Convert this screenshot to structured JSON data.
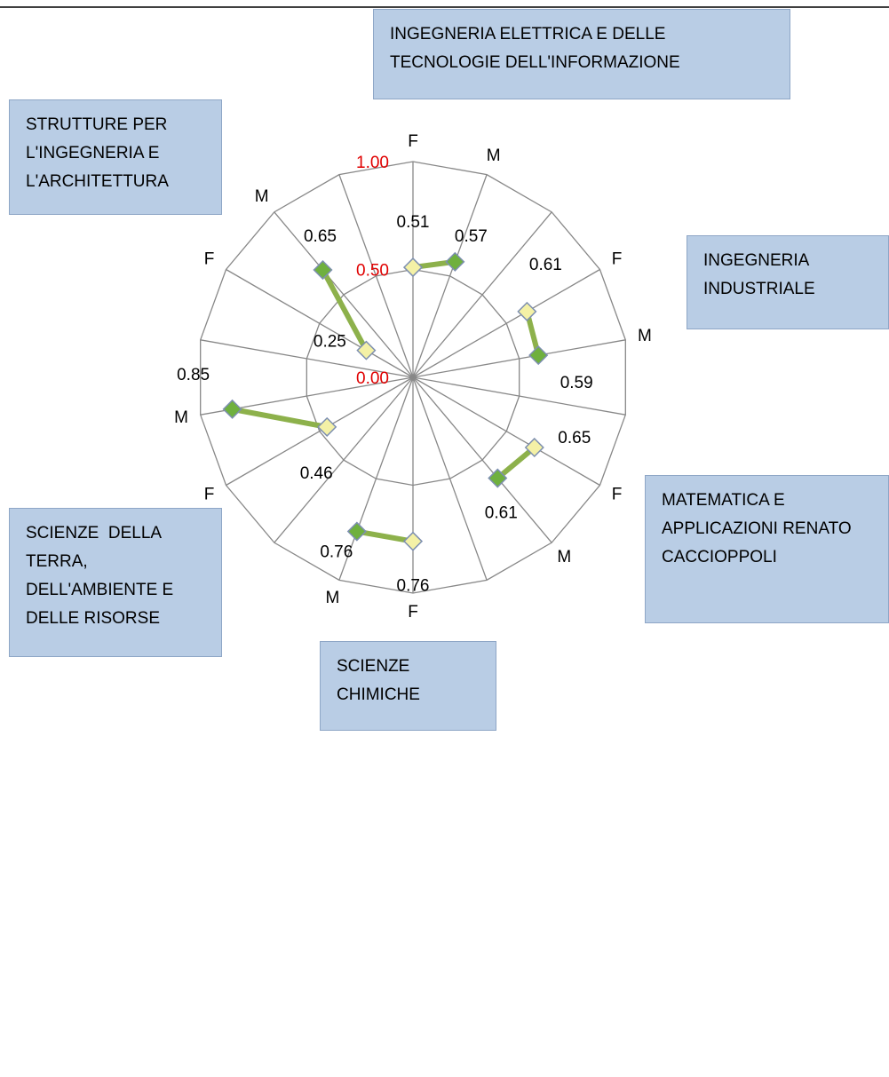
{
  "chart_data": {
    "type": "radar",
    "categories": [
      "F",
      "M",
      null,
      "F",
      "M",
      null,
      "F",
      "M",
      null,
      "F",
      "M",
      null,
      "F",
      "M",
      null,
      "F",
      "M",
      null
    ],
    "values": [
      0.51,
      0.57,
      null,
      0.61,
      0.59,
      null,
      0.65,
      0.61,
      null,
      0.76,
      0.76,
      null,
      0.46,
      0.85,
      null,
      0.25,
      0.65,
      null
    ],
    "line_color": "#8db14b",
    "marker_colors": {
      "F": "#f4f1a6",
      "M": "#6fb03e"
    },
    "rlim": [
      0,
      1
    ],
    "rticks": [
      {
        "value": 0,
        "label": "0.00"
      },
      {
        "value": 0.5,
        "label": "0.50"
      },
      {
        "value": 1,
        "label": "1.00"
      }
    ],
    "grid": true,
    "annotations": [
      "INGEGNERIA ELETTRICA E DELLE TECNOLOGIE DELL'INFORMAZIONE",
      "STRUTTURE PER L'INGEGNERIA E L'ARCHITETTURA",
      "INGEGNERIA INDUSTRIALE",
      "MATEMATICA E APPLICAZIONI RENATO CACCIOPPOLI",
      "SCIENZE  DELLA TERRA, DELL'AMBIENTE E DELLE RISORSE",
      "SCIENZE CHIMICHE"
    ]
  }
}
